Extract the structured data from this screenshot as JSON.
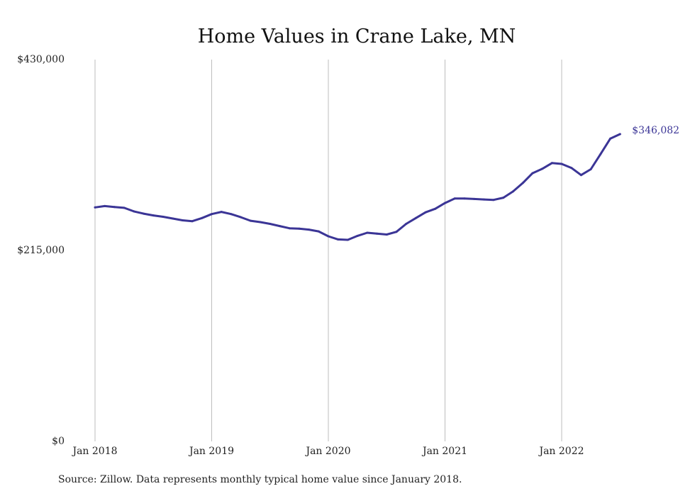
{
  "source_note": "Source: Zillow. Data represents monthly typical home value since January 2018.",
  "chart_data": {
    "type": "line",
    "title": "Home Values in Crane Lake, MN",
    "xlabel": "",
    "ylabel": "",
    "x_ticks": [
      "Jan 2018",
      "Jan 2019",
      "Jan 2020",
      "Jan 2021",
      "Jan 2022"
    ],
    "y_ticks": [
      "$0",
      "$215,000",
      "$430,000"
    ],
    "ylim": [
      0,
      430000
    ],
    "grid": "vertical",
    "line_color": "#3b3596",
    "end_label": "$346,082",
    "series": [
      {
        "x": [
          "2018-01",
          "2018-02",
          "2018-03",
          "2018-04",
          "2018-05",
          "2018-06",
          "2018-07",
          "2018-08",
          "2018-09",
          "2018-10",
          "2018-11",
          "2018-12",
          "2019-01",
          "2019-02",
          "2019-03",
          "2019-04",
          "2019-05",
          "2019-06",
          "2019-07",
          "2019-08",
          "2019-09",
          "2019-10",
          "2019-11",
          "2019-12",
          "2020-01",
          "2020-02",
          "2020-03",
          "2020-04",
          "2020-05",
          "2020-06",
          "2020-07",
          "2020-08",
          "2020-09",
          "2020-10",
          "2020-11",
          "2020-12",
          "2021-01",
          "2021-02",
          "2021-03",
          "2021-04",
          "2021-05",
          "2021-06",
          "2021-07",
          "2021-08",
          "2021-09",
          "2021-10",
          "2021-11",
          "2021-12",
          "2022-01",
          "2022-02",
          "2022-03",
          "2022-04",
          "2022-05",
          "2022-06",
          "2022-07"
        ],
        "values": [
          263500,
          265000,
          264000,
          263000,
          259000,
          256500,
          254500,
          253000,
          251000,
          249000,
          248000,
          251500,
          256000,
          258500,
          256000,
          252500,
          248500,
          247000,
          245000,
          242500,
          240000,
          239500,
          238500,
          236500,
          231000,
          227500,
          227000,
          231500,
          235000,
          234000,
          233000,
          236000,
          245000,
          251500,
          258000,
          262000,
          268500,
          273500,
          273500,
          273000,
          272500,
          272000,
          274500,
          281500,
          291000,
          302000,
          307000,
          313500,
          312500,
          308000,
          300000,
          306500,
          323500,
          341000,
          346082
        ]
      }
    ]
  }
}
